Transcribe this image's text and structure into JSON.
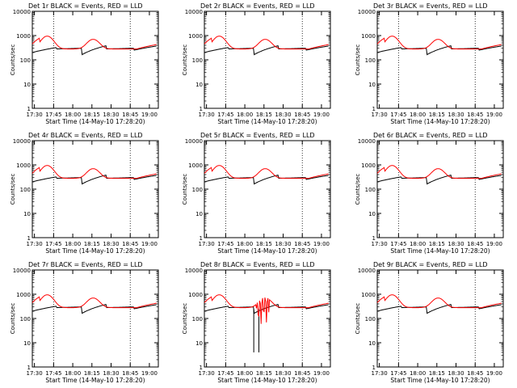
{
  "chart_data": [
    {
      "type": "line",
      "title": "Det 1r BLACK = Events, RED = LLD",
      "xlabel": "Start Time (14-May-10 17:28:20)",
      "ylabel": "Counts/sec",
      "yscale": "log",
      "ylim": [
        1,
        10000
      ],
      "xtick_labels": [
        "17:30",
        "17:45",
        "18:00",
        "18:15",
        "18:30",
        "18:45",
        "19:00"
      ],
      "ytick_labels": [
        "1",
        "10",
        "100",
        "1000",
        "10000"
      ],
      "series": [
        {
          "name": "Events",
          "color": "#000000",
          "values": "approx. 150–350 counts/sec, periodic"
        },
        {
          "name": "LLD",
          "color": "#ff0000",
          "values": "approx. 250–1000 counts/sec, periodic"
        }
      ]
    },
    {
      "type": "line",
      "title": "Det 2r BLACK = Events, RED = LLD",
      "xlabel": "Start Time (14-May-10 17:28:20)",
      "ylabel": "Counts/sec",
      "yscale": "log",
      "ylim": [
        1,
        10000
      ],
      "xtick_labels": [
        "17:30",
        "17:45",
        "18:00",
        "18:15",
        "18:30",
        "18:45",
        "19:00"
      ],
      "ytick_labels": [
        "1",
        "10",
        "100",
        "1000",
        "10000"
      ],
      "series": [
        {
          "name": "Events",
          "color": "#000000"
        },
        {
          "name": "LLD",
          "color": "#ff0000"
        }
      ]
    },
    {
      "type": "line",
      "title": "Det 3r BLACK = Events, RED = LLD",
      "xlabel": "Start Time (14-May-10 17:28:20)",
      "ylabel": "Counts/sec",
      "yscale": "log",
      "ylim": [
        1,
        10000
      ],
      "xtick_labels": [
        "17:30",
        "17:45",
        "18:00",
        "18:15",
        "18:30",
        "18:45",
        "19:00"
      ],
      "ytick_labels": [
        "1",
        "10",
        "100",
        "1000",
        "10000"
      ],
      "series": [
        {
          "name": "Events",
          "color": "#000000"
        },
        {
          "name": "LLD",
          "color": "#ff0000"
        }
      ]
    },
    {
      "type": "line",
      "title": "Det 4r BLACK = Events, RED = LLD",
      "xlabel": "Start Time (14-May-10 17:28:20)",
      "ylabel": "Counts/sec",
      "yscale": "log",
      "ylim": [
        1,
        10000
      ],
      "xtick_labels": [
        "17:30",
        "17:45",
        "18:00",
        "18:15",
        "18:30",
        "18:45",
        "19:00"
      ],
      "ytick_labels": [
        "1",
        "10",
        "100",
        "1000",
        "10000"
      ],
      "series": [
        {
          "name": "Events",
          "color": "#000000"
        },
        {
          "name": "LLD",
          "color": "#ff0000"
        }
      ]
    },
    {
      "type": "line",
      "title": "Det 5r BLACK = Events, RED = LLD",
      "xlabel": "Start Time (14-May-10 17:28:20)",
      "ylabel": "Counts/sec",
      "yscale": "log",
      "ylim": [
        1,
        10000
      ],
      "xtick_labels": [
        "17:30",
        "17:45",
        "18:00",
        "18:15",
        "18:30",
        "18:45",
        "19:00"
      ],
      "ytick_labels": [
        "1",
        "10",
        "100",
        "1000",
        "10000"
      ],
      "series": [
        {
          "name": "Events",
          "color": "#000000"
        },
        {
          "name": "LLD",
          "color": "#ff0000"
        }
      ]
    },
    {
      "type": "line",
      "title": "Det 6r BLACK = Events, RED = LLD",
      "xlabel": "Start Time (14-May-10 17:28:20)",
      "ylabel": "Counts/sec",
      "yscale": "log",
      "ylim": [
        1,
        10000
      ],
      "xtick_labels": [
        "17:30",
        "17:45",
        "18:00",
        "18:15",
        "18:30",
        "18:45",
        "19:00"
      ],
      "ytick_labels": [
        "1",
        "10",
        "100",
        "1000",
        "10000"
      ],
      "series": [
        {
          "name": "Events",
          "color": "#000000"
        },
        {
          "name": "LLD",
          "color": "#ff0000"
        }
      ]
    },
    {
      "type": "line",
      "title": "Det 7r BLACK = Events, RED = LLD",
      "xlabel": "Start Time (14-May-10 17:28:20)",
      "ylabel": "Counts/sec",
      "yscale": "log",
      "ylim": [
        1,
        10000
      ],
      "xtick_labels": [
        "17:30",
        "17:45",
        "18:00",
        "18:15",
        "18:30",
        "18:45",
        "19:00"
      ],
      "ytick_labels": [
        "1",
        "10",
        "100",
        "1000",
        "10000"
      ],
      "series": [
        {
          "name": "Events",
          "color": "#000000"
        },
        {
          "name": "LLD",
          "color": "#ff0000"
        }
      ]
    },
    {
      "type": "line",
      "title": "Det 8r BLACK = Events, RED = LLD",
      "xlabel": "Start Time (14-May-10 17:28:20)",
      "ylabel": "Counts/sec",
      "yscale": "log",
      "ylim": [
        1,
        10000
      ],
      "xtick_labels": [
        "17:30",
        "17:45",
        "18:00",
        "18:15",
        "18:30",
        "18:45",
        "19:00"
      ],
      "ytick_labels": [
        "1",
        "10",
        "100",
        "1000",
        "10000"
      ],
      "series": [
        {
          "name": "Events",
          "color": "#000000"
        },
        {
          "name": "LLD",
          "color": "#ff0000"
        }
      ]
    },
    {
      "type": "line",
      "title": "Det 9r BLACK = Events, RED = LLD",
      "xlabel": "Start Time (14-May-10 17:28:20)",
      "ylabel": "Counts/sec",
      "yscale": "log",
      "ylim": [
        1,
        10000
      ],
      "xtick_labels": [
        "17:30",
        "17:45",
        "18:00",
        "18:15",
        "18:30",
        "18:45",
        "19:00"
      ],
      "ytick_labels": [
        "1",
        "10",
        "100",
        "1000",
        "10000"
      ],
      "series": [
        {
          "name": "Events",
          "color": "#000000"
        },
        {
          "name": "LLD",
          "color": "#ff0000"
        }
      ]
    }
  ]
}
